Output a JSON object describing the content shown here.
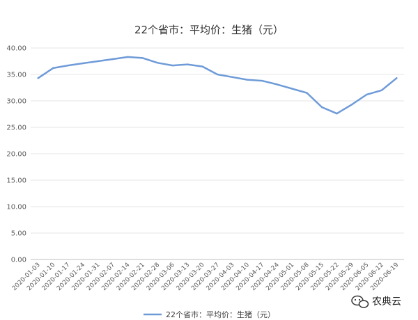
{
  "chart_data": {
    "type": "line",
    "title": "22个省市：平均价：生猪（元）",
    "xlabel": "",
    "ylabel": "",
    "ylim": [
      0,
      40
    ],
    "yticks": [
      "0.00",
      "5.00",
      "10.00",
      "15.00",
      "20.00",
      "25.00",
      "30.00",
      "35.00",
      "40.00"
    ],
    "grid": true,
    "legend_position": "bottom",
    "categories": [
      "2020-01-03",
      "2020-01-10",
      "2020-01-17",
      "2020-01-24",
      "2020-01-31",
      "2020-02-07",
      "2020-02-14",
      "2020-02-21",
      "2020-02-28",
      "2020-03-06",
      "2020-03-13",
      "2020-03-20",
      "2020-03-27",
      "2020-04-03",
      "2020-04-10",
      "2020-04-17",
      "2020-04-24",
      "2020-05-01",
      "2020-05-08",
      "2020-05-15",
      "2020-05-22",
      "2020-05-29",
      "2020-06-05",
      "2020-06-12",
      "2020-06-19"
    ],
    "series": [
      {
        "name": "22个省市：平均价：生猪（元）",
        "color": "#6E9BD8",
        "values": [
          34.3,
          36.2,
          36.7,
          37.1,
          37.5,
          37.9,
          38.3,
          38.1,
          37.2,
          36.7,
          36.9,
          36.5,
          35.0,
          34.5,
          34.0,
          33.8,
          33.1,
          32.3,
          31.5,
          28.8,
          27.6,
          29.3,
          31.2,
          32.0,
          34.3
        ]
      }
    ]
  },
  "watermark": {
    "icon": "wechat-icon",
    "text": "农典云"
  }
}
